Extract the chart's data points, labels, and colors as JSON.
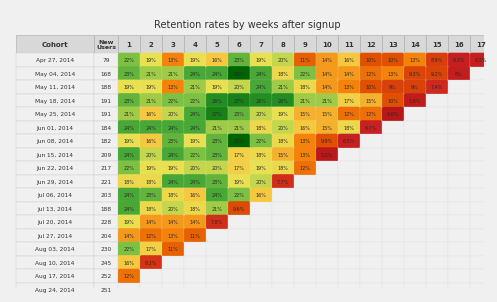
{
  "title": "Retention rates by weeks after signup",
  "cohorts": [
    "Apr 27, 2014",
    "May 04, 2014",
    "May 11, 2014",
    "May 18, 2014",
    "May 25, 2014",
    "Jun 01, 2014",
    "Jun 08, 2014",
    "Jun 15, 2014",
    "Jun 22, 2014",
    "Jun 29, 2014",
    "Jul 06, 2014",
    "Jul 13, 2014",
    "Jul 20, 2014",
    "Jul 27, 2014",
    "Aug 03, 2014",
    "Aug 10, 2014",
    "Aug 17, 2014",
    "Aug 24, 2014"
  ],
  "new_users": [
    79,
    168,
    188,
    191,
    191,
    184,
    182,
    209,
    217,
    221,
    203,
    188,
    228,
    204,
    230,
    245,
    252,
    251
  ],
  "weeks": [
    1,
    2,
    3,
    4,
    5,
    6,
    7,
    8,
    9,
    10,
    11,
    12,
    13,
    14,
    15,
    16,
    17
  ],
  "data": [
    [
      22,
      19,
      13,
      19,
      16,
      23,
      19,
      20,
      11,
      14,
      16,
      10,
      10,
      13,
      8.9,
      6.3,
      6.3
    ],
    [
      23,
      21,
      21,
      24,
      24,
      29,
      24,
      18,
      22,
      14,
      14,
      12,
      13,
      9.3,
      9.2,
      6.0,
      null
    ],
    [
      19,
      19,
      13,
      21,
      19,
      20,
      24,
      21,
      18,
      14,
      13,
      10,
      9.0,
      9.0,
      7.4,
      null,
      null
    ],
    [
      23,
      21,
      22,
      22,
      26,
      27,
      26,
      26,
      21,
      21,
      17,
      15,
      10,
      5.8,
      null,
      null,
      null
    ],
    [
      21,
      16,
      20,
      24,
      27,
      23,
      20,
      19,
      15,
      15,
      12,
      12,
      4.8,
      null,
      null,
      null,
      null
    ],
    [
      24,
      24,
      24,
      24,
      21,
      21,
      18,
      20,
      16,
      15,
      18,
      6.7,
      null,
      null,
      null,
      null,
      null
    ],
    [
      19,
      16,
      23,
      19,
      23,
      29,
      22,
      18,
      13,
      9.9,
      6.5,
      null,
      null,
      null,
      null,
      null,
      null
    ],
    [
      24,
      20,
      24,
      22,
      23,
      17,
      18,
      15,
      13,
      5.2,
      null,
      null,
      null,
      null,
      null,
      null,
      null
    ],
    [
      22,
      19,
      19,
      20,
      20,
      17,
      19,
      18,
      12,
      null,
      null,
      null,
      null,
      null,
      null,
      null,
      null
    ],
    [
      18,
      18,
      24,
      24,
      23,
      19,
      20,
      7.7,
      null,
      null,
      null,
      null,
      null,
      null,
      null,
      null,
      null
    ],
    [
      24,
      23,
      18,
      16,
      24,
      22,
      16,
      null,
      null,
      null,
      null,
      null,
      null,
      null,
      null,
      null,
      null
    ],
    [
      24,
      18,
      20,
      18,
      21,
      9.6,
      null,
      null,
      null,
      null,
      null,
      null,
      null,
      null,
      null,
      null,
      null
    ],
    [
      19,
      14,
      14,
      14,
      7.8,
      null,
      null,
      null,
      null,
      null,
      null,
      null,
      null,
      null,
      null,
      null,
      null
    ],
    [
      14,
      12,
      13,
      11,
      null,
      null,
      null,
      null,
      null,
      null,
      null,
      null,
      null,
      null,
      null,
      null,
      null
    ],
    [
      22,
      17,
      11,
      null,
      null,
      null,
      null,
      null,
      null,
      null,
      null,
      null,
      null,
      null,
      null,
      null,
      null
    ],
    [
      16,
      8.2,
      null,
      null,
      null,
      null,
      null,
      null,
      null,
      null,
      null,
      null,
      null,
      null,
      null,
      null,
      null
    ],
    [
      12,
      null,
      null,
      null,
      null,
      null,
      null,
      null,
      null,
      null,
      null,
      null,
      null,
      null,
      null,
      null,
      null
    ],
    [
      null,
      null,
      null,
      null,
      null,
      null,
      null,
      null,
      null,
      null,
      null,
      null,
      null,
      null,
      null,
      null,
      null
    ]
  ],
  "bg_color": "#f0f0f0",
  "header_bg": "#d8d8d8",
  "color_stops": [
    [
      0,
      "#8b0000"
    ],
    [
      7,
      "#cc2222"
    ],
    [
      10,
      "#e05000"
    ],
    [
      13,
      "#f5820a"
    ],
    [
      16,
      "#f5c840"
    ],
    [
      19,
      "#e8e050"
    ],
    [
      22,
      "#7cc142"
    ],
    [
      25,
      "#2e9b2e"
    ],
    [
      29,
      "#006400"
    ]
  ],
  "title_fontsize": 7,
  "header_fontsize": 5,
  "label_fontsize": 4.2,
  "cell_fontsize": 3.5
}
